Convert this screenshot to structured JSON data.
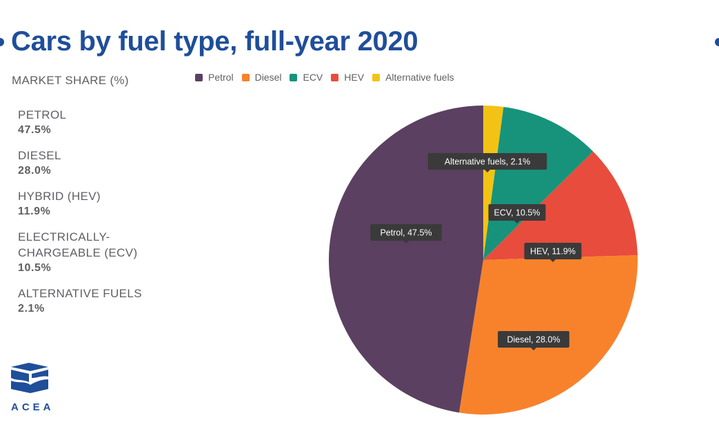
{
  "header": {
    "title": "Cars by fuel type, full-year 2020",
    "subtitle": "MARKET SHARE (%)"
  },
  "share_list": [
    {
      "name": "PETROL",
      "value": "47.5%"
    },
    {
      "name": "DIESEL",
      "value": "28.0%"
    },
    {
      "name": "HYBRID (HEV)",
      "value": "11.9%"
    },
    {
      "name": "ELECTRICALLY-CHARGEABLE (ECV)",
      "value": "10.5%"
    },
    {
      "name": "ALTERNATIVE FUELS",
      "value": "2.1%"
    }
  ],
  "logo": {
    "text": "ACEA",
    "color": "#1f4e9a"
  },
  "chart_data": {
    "type": "pie",
    "categories": [
      "Petrol",
      "Diesel",
      "ECV",
      "HEV",
      "Alternative fuels"
    ],
    "values": [
      47.5,
      28.0,
      10.5,
      11.9,
      2.1
    ],
    "colors": [
      "#5b4061",
      "#f8822b",
      "#17937b",
      "#e84c3d",
      "#f2c315"
    ],
    "labels": [
      "Petrol, 47.5%",
      "Diesel, 28.0%",
      "ECV, 10.5%",
      "HEV, 11.9%",
      "Alternative fuels, 2.1%"
    ],
    "slice_order_clockwise_from_top": [
      "Alternative fuels",
      "ECV",
      "HEV",
      "Diesel",
      "Petrol"
    ],
    "legend_position": "top"
  }
}
